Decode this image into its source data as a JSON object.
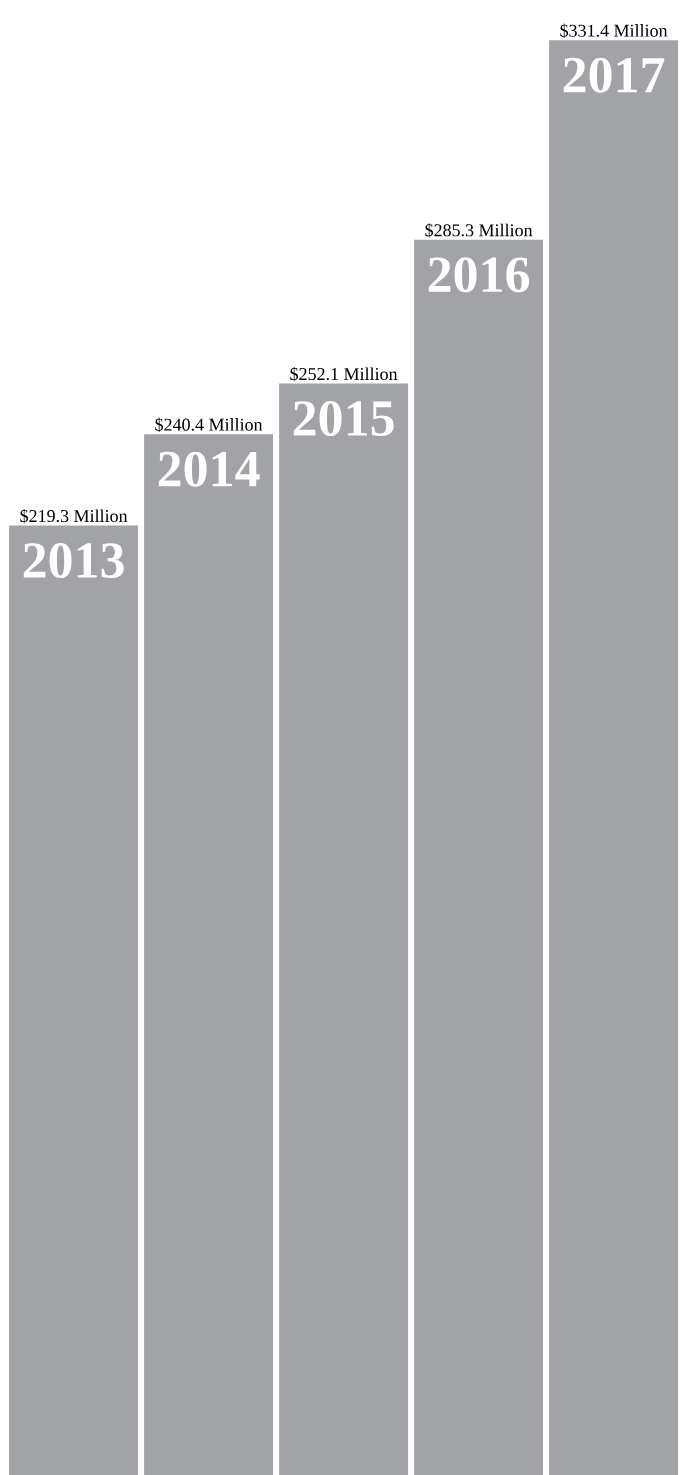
{
  "chart_data": {
    "type": "bar",
    "categories": [
      "2013",
      "2014",
      "2015",
      "2016",
      "2017"
    ],
    "values": [
      219.3,
      240.4,
      252.1,
      285.3,
      331.4
    ],
    "value_labels": [
      "$219.3 Million",
      "$240.4 Million",
      "$252.1 Million",
      "$285.3 Million",
      "$331.4 Million"
    ],
    "color": "#a2a3a7"
  }
}
